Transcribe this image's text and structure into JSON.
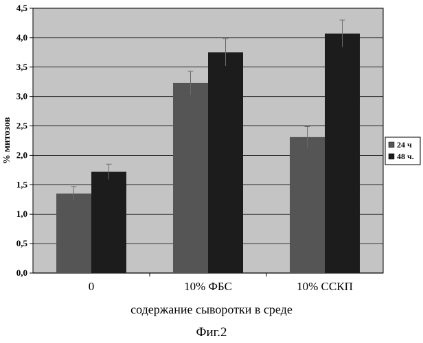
{
  "chart_data": {
    "type": "bar",
    "title": "",
    "xlabel": "содержание сыворотки в среде",
    "ylabel": "% митозов",
    "ylim": [
      0,
      4.5
    ],
    "ytick_step": 0.5,
    "ytick_labels": [
      "0,0",
      "0,5",
      "1,0",
      "1,5",
      "2,0",
      "2,5",
      "3,0",
      "3,5",
      "4,0",
      "4,5"
    ],
    "grid": true,
    "legend_position": "right",
    "categories": [
      "0",
      "10% ФБС",
      "10% ССКП"
    ],
    "series": [
      {
        "name": "24 ч",
        "values": [
          1.35,
          3.23,
          2.31
        ],
        "errors": [
          0.12,
          0.2,
          0.18
        ],
        "color": "#555555"
      },
      {
        "name": "48 ч.",
        "values": [
          1.72,
          3.75,
          4.07
        ],
        "errors": [
          0.13,
          0.23,
          0.23
        ],
        "color": "#1c1c1c"
      }
    ]
  },
  "figure_caption": "Фиг.2",
  "colors": {
    "plot_background": "#c4c4c4",
    "gridline": "#000000"
  }
}
